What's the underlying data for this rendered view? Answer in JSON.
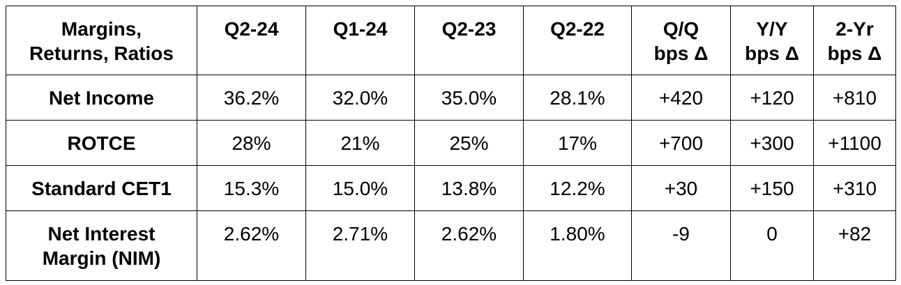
{
  "table": {
    "header": [
      [
        "Margins,",
        "Returns, Ratios"
      ],
      [
        "Q2-24"
      ],
      [
        "Q1-24"
      ],
      [
        "Q2-23"
      ],
      [
        "Q2-22"
      ],
      [
        "Q/Q",
        "bps Δ"
      ],
      [
        "Y/Y",
        "bps Δ"
      ],
      [
        "2-Yr",
        "bps Δ"
      ]
    ],
    "rows": [
      [
        [
          "Net Income"
        ],
        [
          "36.2%"
        ],
        [
          "32.0%"
        ],
        [
          "35.0%"
        ],
        [
          "28.1%"
        ],
        [
          "+420"
        ],
        [
          "+120"
        ],
        [
          "+810"
        ]
      ],
      [
        [
          "ROTCE"
        ],
        [
          "28%"
        ],
        [
          "21%"
        ],
        [
          "25%"
        ],
        [
          "17%"
        ],
        [
          "+700"
        ],
        [
          "+300"
        ],
        [
          "+1100"
        ]
      ],
      [
        [
          "Standard CET1"
        ],
        [
          "15.3%"
        ],
        [
          "15.0%"
        ],
        [
          "13.8%"
        ],
        [
          "12.2%"
        ],
        [
          "+30"
        ],
        [
          "+150"
        ],
        [
          "+310"
        ]
      ],
      [
        [
          "Net Interest",
          "Margin (NIM)"
        ],
        [
          "2.62%"
        ],
        [
          "2.71%"
        ],
        [
          "2.62%"
        ],
        [
          "1.80%"
        ],
        [
          "-9"
        ],
        [
          "0"
        ],
        [
          "+82"
        ]
      ]
    ]
  }
}
